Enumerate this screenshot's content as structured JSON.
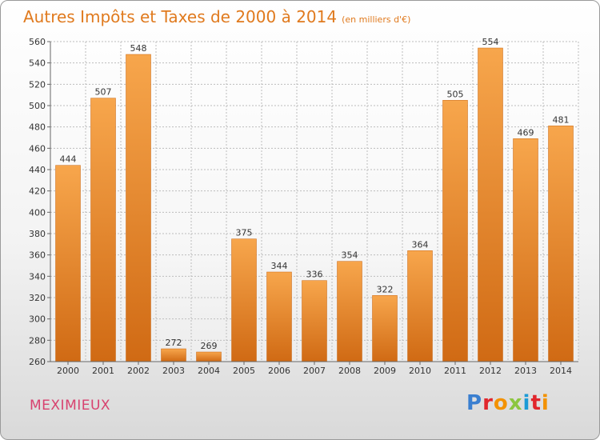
{
  "header": {
    "title": "Autres Impôts et Taxes de 2000 à 2014",
    "unit": "(en milliers d'€)"
  },
  "commune": "MEXIMIEUX",
  "logo": {
    "text": "Proxiti",
    "colors": [
      "#3a7fd0",
      "#e1262c",
      "#f39200",
      "#8cc63f",
      "#1d9bd6",
      "#e1262c",
      "#f39200"
    ]
  },
  "colors": {
    "bar_top": "#f7a64c",
    "bar_bottom": "#d06a14",
    "title": "#e07a1e",
    "commune": "#d8426f"
  },
  "chart_data": {
    "type": "bar",
    "title": "Autres Impôts et Taxes de 2000 à 2014",
    "subtitle": "(en milliers d'€)",
    "xlabel": "",
    "ylabel": "",
    "categories": [
      "2000",
      "2001",
      "2002",
      "2003",
      "2004",
      "2005",
      "2006",
      "2007",
      "2008",
      "2009",
      "2010",
      "2011",
      "2012",
      "2013",
      "2014"
    ],
    "values": [
      444,
      507,
      548,
      272,
      269,
      375,
      344,
      336,
      354,
      322,
      364,
      505,
      554,
      469,
      481
    ],
    "ylim": [
      260,
      560
    ],
    "yticks": [
      260,
      280,
      300,
      320,
      340,
      360,
      380,
      400,
      420,
      440,
      460,
      480,
      500,
      520,
      540,
      560
    ],
    "grid": true,
    "legend": "none"
  }
}
